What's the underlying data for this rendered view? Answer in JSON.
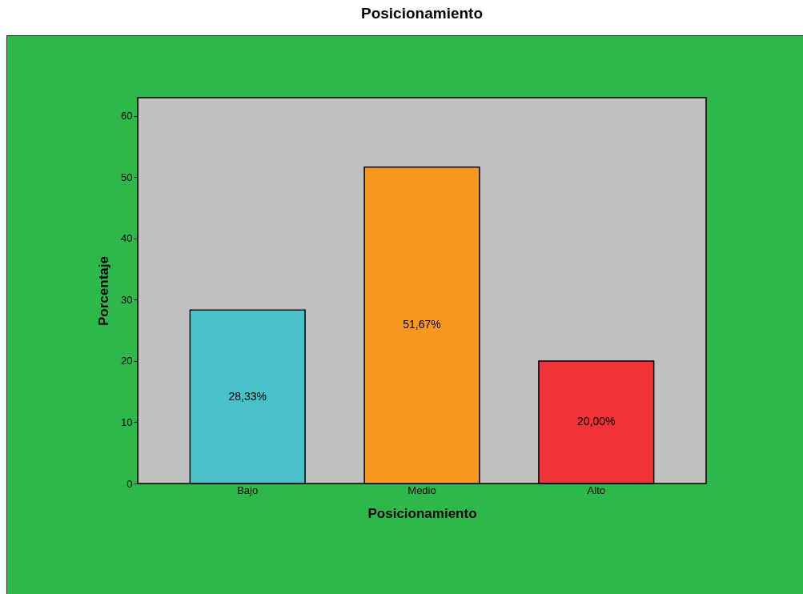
{
  "chart_data": {
    "type": "bar",
    "title": "Posicionamiento",
    "xlabel": "Posicionamiento",
    "ylabel": "Porcentaje",
    "categories": [
      "Bajo",
      "Medio",
      "Alto"
    ],
    "values": [
      28.33,
      51.67,
      20.0
    ],
    "colors": [
      "#48c2c8",
      "#f7991f",
      "#ef3338"
    ],
    "value_labels": [
      "28,33%",
      "51,67%",
      "20,00%"
    ],
    "ylim": [
      0,
      63
    ],
    "yticks": [
      0,
      10,
      20,
      30,
      40,
      50,
      60
    ],
    "grid": false
  }
}
